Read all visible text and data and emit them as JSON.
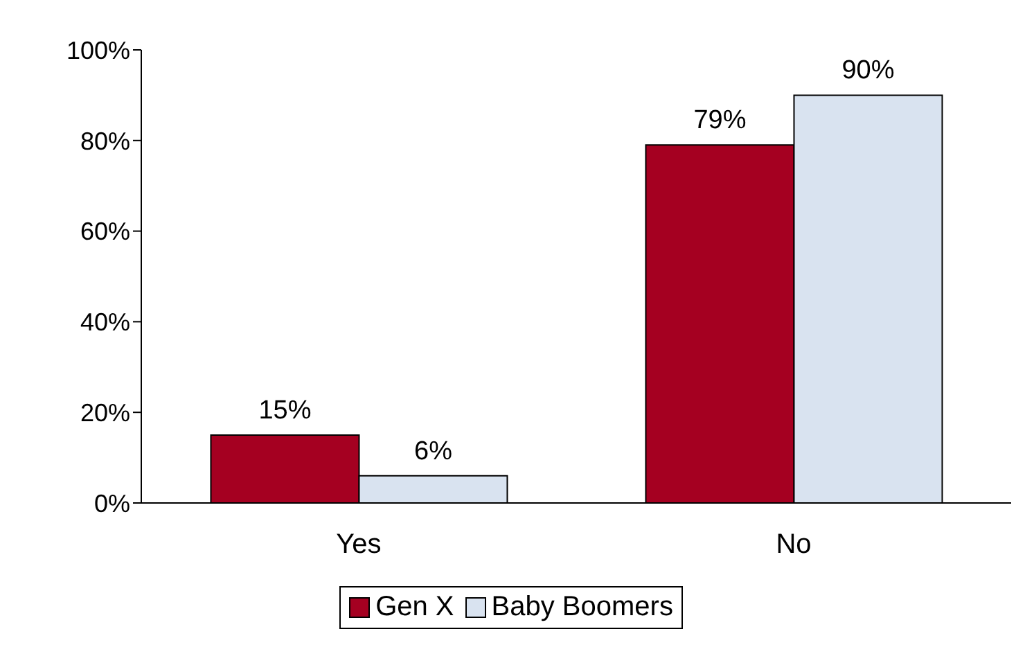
{
  "chart_data": {
    "type": "bar",
    "categories": [
      "Yes",
      "No"
    ],
    "series": [
      {
        "name": "Gen X",
        "color": "#a50021",
        "values": [
          15,
          79
        ],
        "value_labels": [
          "15%",
          "79%"
        ]
      },
      {
        "name": "Baby Boomers",
        "color": "#d9e3f0",
        "values": [
          6,
          90
        ],
        "value_labels": [
          "6%",
          "90%"
        ]
      }
    ],
    "ylim": [
      0,
      100
    ],
    "yticks": [
      {
        "value": 0,
        "label": "0%"
      },
      {
        "value": 20,
        "label": "20%"
      },
      {
        "value": 40,
        "label": "40%"
      },
      {
        "value": 60,
        "label": "60%"
      },
      {
        "value": 80,
        "label": "80%"
      },
      {
        "value": 100,
        "label": "100%"
      }
    ],
    "grid": false,
    "legend": "bottom"
  }
}
